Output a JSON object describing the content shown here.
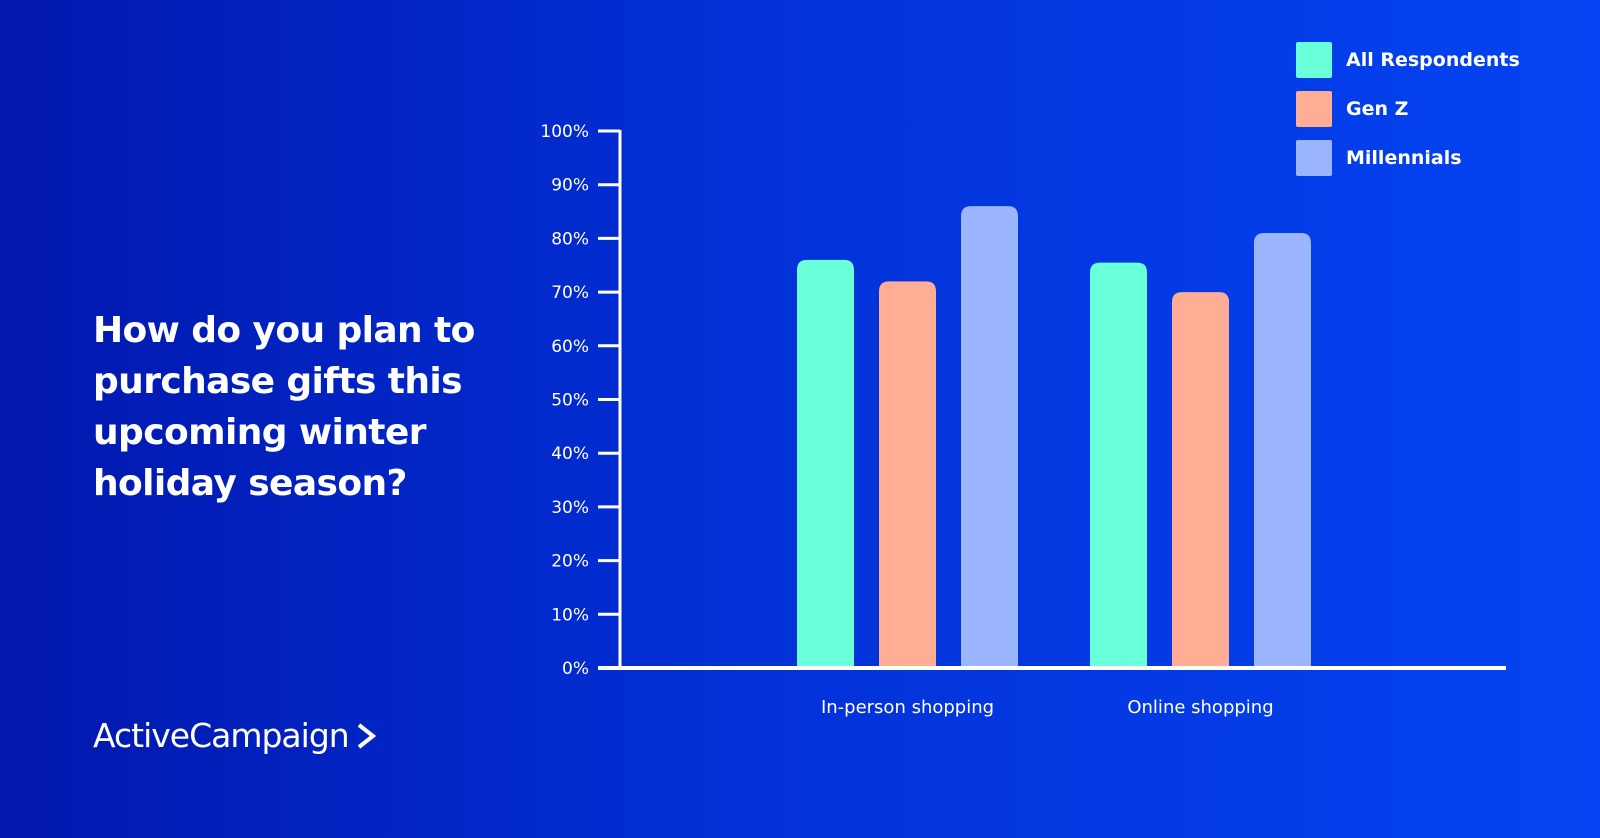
{
  "question": "How do you plan to purchase gifts this upcoming winter holiday season?",
  "brand": {
    "name": "ActiveCampaign",
    "icon": "chevron-right-icon"
  },
  "legend": {
    "items": [
      {
        "label": "All Respondents",
        "color": "#69ffd8"
      },
      {
        "label": "Gen Z",
        "color": "#ffad94"
      },
      {
        "label": "Millennials",
        "color": "#9bb6ff"
      }
    ]
  },
  "chart_data": {
    "type": "bar",
    "categories": [
      "In-person shopping",
      "Online shopping"
    ],
    "series": [
      {
        "name": "All Respondents",
        "values": [
          76,
          75.5
        ],
        "color": "#69ffd8"
      },
      {
        "name": "Gen Z",
        "values": [
          72,
          70
        ],
        "color": "#ffad94"
      },
      {
        "name": "Millennials",
        "values": [
          86,
          81
        ],
        "color": "#9bb6ff"
      }
    ],
    "yticks": [
      "0%",
      "10%",
      "20%",
      "30%",
      "40%",
      "50%",
      "60%",
      "70%",
      "80%",
      "90%",
      "100%"
    ],
    "ylim": [
      0,
      100
    ],
    "grid": false,
    "legend_position": "top-right"
  }
}
